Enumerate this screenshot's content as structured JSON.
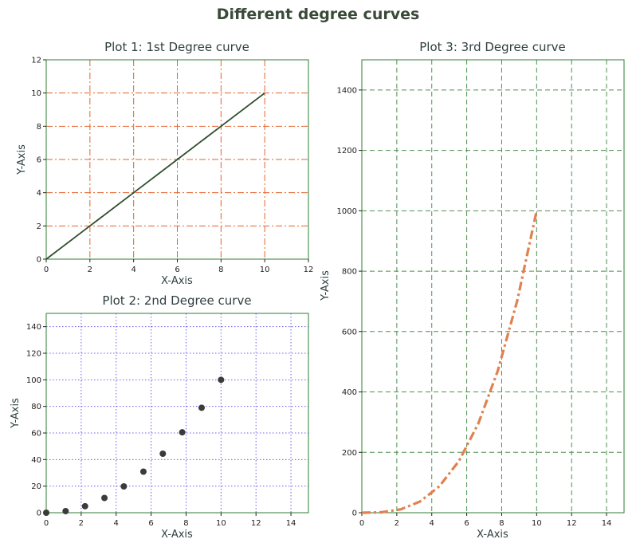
{
  "figure": {
    "title": "Different degree curves"
  },
  "chart_data": [
    {
      "id": "plot1",
      "type": "line",
      "title": "Plot 1: 1st Degree curve",
      "xlabel": "X-Axis",
      "ylabel": "Y-Axis",
      "xlim": [
        0,
        12
      ],
      "ylim": [
        0,
        12
      ],
      "xticks": [
        0,
        2,
        4,
        6,
        8,
        10,
        12
      ],
      "yticks": [
        0,
        2,
        4,
        6,
        8,
        10,
        12
      ],
      "grid": {
        "on": true,
        "color": "#e8622c",
        "style": "dashdot"
      },
      "line_color": "#2f4f2f",
      "spine_color": "#2e7d32",
      "series": [
        {
          "x": [
            0,
            2,
            4,
            6,
            8,
            10
          ],
          "y": [
            0,
            2,
            4,
            6,
            8,
            10
          ]
        }
      ]
    },
    {
      "id": "plot2",
      "type": "scatter",
      "title": "Plot 2: 2nd Degree curve",
      "xlabel": "X-Axis",
      "ylabel": "Y-Axis",
      "xlim": [
        0,
        15
      ],
      "ylim": [
        0,
        150
      ],
      "xticks": [
        0,
        2,
        4,
        6,
        8,
        10,
        12,
        14
      ],
      "yticks": [
        0,
        20,
        40,
        60,
        80,
        100,
        120,
        140
      ],
      "grid": {
        "on": true,
        "color": "#6a5cf0",
        "style": "dotted"
      },
      "marker_color": "#3b3b3b",
      "spine_color": "#2e7d32",
      "series": [
        {
          "x": [
            0,
            1.11,
            2.22,
            3.33,
            4.44,
            5.56,
            6.67,
            7.78,
            8.89,
            10
          ],
          "y": [
            0,
            1.2,
            4.9,
            11.1,
            19.8,
            30.9,
            44.4,
            60.5,
            79.0,
            100
          ]
        }
      ]
    },
    {
      "id": "plot3",
      "type": "line",
      "title": "Plot 3: 3rd Degree curve",
      "xlabel": "X-Axis",
      "ylabel": "Y-Axis",
      "xlim": [
        0,
        15
      ],
      "ylim": [
        0,
        1500
      ],
      "xticks": [
        0,
        2,
        4,
        6,
        8,
        10,
        12,
        14
      ],
      "yticks": [
        0,
        200,
        400,
        600,
        800,
        1000,
        1200,
        1400
      ],
      "grid": {
        "on": true,
        "color": "#4f8f4f",
        "style": "dashed"
      },
      "line_color": "#e0814f",
      "spine_color": "#2e7d32",
      "series": [
        {
          "x": [
            0,
            1.11,
            2.22,
            3.33,
            4.44,
            5.56,
            6.67,
            7.78,
            8.89,
            10
          ],
          "y": [
            0,
            1.4,
            11.0,
            37.0,
            87.8,
            171.5,
            296.3,
            470.5,
            702.3,
            1000
          ]
        }
      ]
    }
  ]
}
